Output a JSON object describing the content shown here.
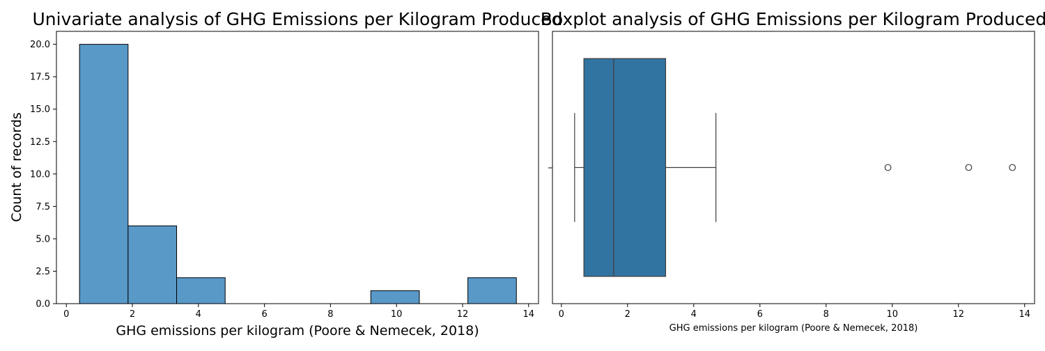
{
  "chart_data": [
    {
      "type": "bar",
      "title": "Univariate analysis of GHG Emissions per Kilogram Produced",
      "xlabel": "GHG emissions per kilogram (Poore & Nemecek, 2018)",
      "ylabel": "Count of records",
      "bins": [
        {
          "start": 0.4,
          "end": 1.87,
          "count": 20
        },
        {
          "start": 1.87,
          "end": 3.34,
          "count": 6
        },
        {
          "start": 3.34,
          "end": 4.81,
          "count": 2
        },
        {
          "start": 4.81,
          "end": 6.28,
          "count": 0
        },
        {
          "start": 6.28,
          "end": 7.75,
          "count": 0
        },
        {
          "start": 7.75,
          "end": 9.22,
          "count": 0
        },
        {
          "start": 9.22,
          "end": 10.69,
          "count": 1
        },
        {
          "start": 10.69,
          "end": 12.16,
          "count": 0
        },
        {
          "start": 12.16,
          "end": 13.63,
          "count": 2
        }
      ],
      "xlim": [
        -0.3,
        14.3
      ],
      "ylim": [
        0,
        21
      ],
      "xticks": [
        0,
        2,
        4,
        6,
        8,
        10,
        12,
        14
      ],
      "yticks": [
        0,
        2.5,
        5,
        7.5,
        10,
        12.5,
        15,
        17.5,
        20
      ],
      "ytick_labels": [
        "0.0",
        "2.5",
        "5.0",
        "7.5",
        "10.0",
        "12.5",
        "15.0",
        "17.5",
        "20.0"
      ],
      "color": "#5899c8",
      "grid": false
    },
    {
      "type": "box",
      "title": "Boxplot analysis of GHG Emissions per Kilogram Produced",
      "xlabel": "GHG emissions per kilogram (Poore & Nemecek, 2018)",
      "whisker_low": 0.4,
      "q1": 0.68,
      "median": 1.58,
      "q3": 3.15,
      "whisker_high": 4.67,
      "outliers": [
        9.87,
        12.31,
        13.63
      ],
      "xlim": [
        -0.27,
        14.3
      ],
      "xticks": [
        0,
        2,
        4,
        6,
        8,
        10,
        12,
        14
      ],
      "color": "#3274a1",
      "grid": false
    }
  ]
}
